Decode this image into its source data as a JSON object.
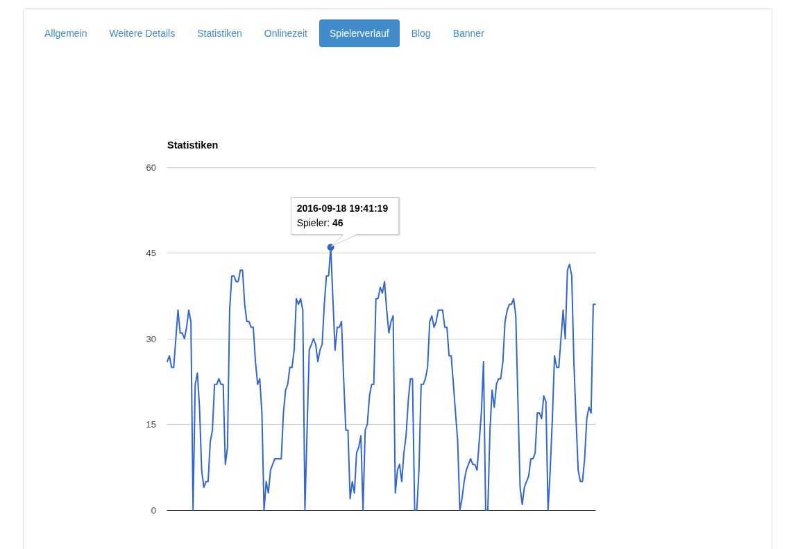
{
  "chart_data": {
    "type": "line",
    "title": "Statistiken",
    "annotations": [
      "Allgemein",
      "Weitere Details",
      "Statistiken",
      "Onlinezeit",
      "Spielerverlauf",
      "Blog",
      "Banner",
      "2016-09-18 19:41:19",
      "Spieler: 46"
    ],
    "categories": [
      null,
      null,
      null,
      null,
      null,
      null,
      null,
      null,
      null,
      null,
      null,
      null,
      null,
      null,
      null,
      null,
      null,
      null,
      null,
      null,
      null,
      null,
      null,
      null,
      null,
      null,
      null,
      null,
      null,
      null,
      null,
      null,
      null,
      null,
      null,
      null,
      null,
      null,
      null,
      null,
      null,
      null,
      null,
      null,
      null,
      null,
      null,
      null,
      null,
      null,
      null,
      null,
      null,
      null,
      null,
      null,
      null,
      null,
      null,
      null,
      null,
      null,
      null,
      null,
      null,
      null,
      null,
      null,
      null,
      null,
      null,
      null,
      null,
      null,
      null,
      null,
      null,
      null,
      null,
      null,
      null,
      null,
      null,
      null,
      null,
      null,
      null,
      null,
      null,
      null,
      null,
      null,
      null,
      null,
      null,
      null,
      null,
      null,
      null,
      null,
      null,
      null,
      null,
      null,
      null,
      null,
      null,
      null,
      null,
      null,
      null,
      null,
      null,
      null,
      null,
      null,
      null,
      null,
      null,
      null,
      null,
      null,
      null,
      null,
      null,
      null,
      null,
      null,
      null,
      null,
      null,
      null,
      null,
      null,
      null,
      null,
      null,
      null,
      null,
      null,
      null,
      null,
      null,
      null,
      null,
      null,
      null,
      null,
      null,
      null,
      null,
      null,
      null,
      null,
      null,
      null,
      null,
      null,
      null,
      null,
      null,
      null,
      null,
      null,
      null,
      null,
      null,
      null,
      null,
      null,
      null,
      null,
      null,
      null,
      null,
      null,
      null,
      null,
      null,
      null,
      null,
      null,
      null,
      null,
      null,
      null,
      null,
      null,
      null,
      null,
      null,
      null,
      null,
      null,
      null,
      null,
      null,
      null,
      null,
      null
    ],
    "series": [
      {
        "color": "#3366cc",
        "values": [
          26,
          27,
          25,
          25,
          30,
          35,
          31,
          31,
          30,
          32,
          35,
          33,
          0,
          22,
          24,
          18,
          7,
          4,
          5,
          5,
          12,
          14,
          22,
          22,
          23,
          22,
          22,
          8,
          11,
          35,
          41,
          41,
          40,
          40,
          42,
          42,
          36,
          33,
          33,
          32,
          32,
          26,
          22,
          23,
          17,
          0,
          5,
          3,
          7,
          8,
          9,
          9,
          9,
          9,
          17,
          21,
          22,
          25,
          25,
          28,
          37,
          36,
          37,
          35,
          0,
          14,
          28,
          29,
          30,
          29,
          26,
          28,
          29,
          36,
          41,
          41,
          46,
          37,
          28,
          32,
          32,
          33,
          23,
          14,
          14,
          2,
          5,
          3,
          10,
          11,
          13,
          0,
          14,
          15,
          20,
          22,
          22,
          37,
          37,
          39,
          38,
          40,
          35,
          31,
          33,
          34,
          3,
          7,
          8,
          5,
          10,
          13,
          19,
          23,
          23,
          0,
          0,
          7,
          22,
          22,
          23,
          25,
          33,
          34,
          32,
          33,
          35,
          35,
          35,
          32,
          32,
          27,
          27,
          22,
          17,
          12,
          0,
          2,
          5,
          7,
          8,
          9,
          8,
          8,
          7,
          12,
          17,
          26,
          0,
          0,
          14,
          21,
          18,
          22,
          23,
          23,
          26,
          33,
          35,
          36,
          36,
          37,
          34,
          19,
          4,
          1,
          4,
          5,
          6,
          9,
          9,
          10,
          17,
          17,
          16,
          20,
          19,
          0,
          7,
          16,
          27,
          25,
          25,
          30,
          35,
          30,
          42,
          43,
          41,
          26,
          16,
          7,
          5,
          5,
          9,
          16,
          18,
          17,
          36,
          36
        ]
      }
    ],
    "ylim": [
      0,
      60
    ],
    "yticks": [
      0,
      15,
      30,
      45,
      60
    ],
    "grid": "y",
    "tick_labels": "y",
    "marker": "none",
    "line_style": "solid"
  }
}
